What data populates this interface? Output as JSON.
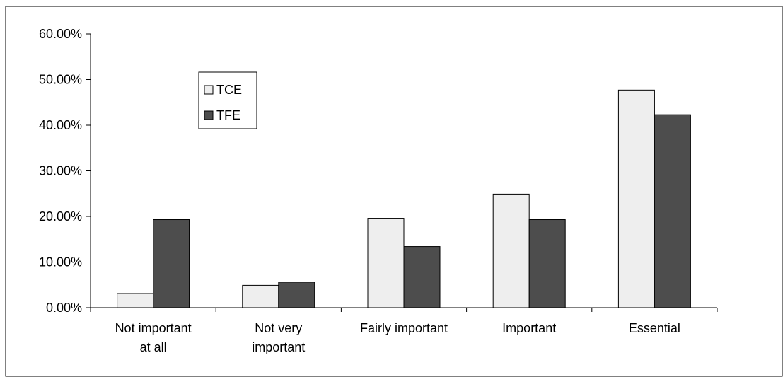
{
  "chart_data": {
    "type": "bar",
    "title": "",
    "xlabel": "",
    "ylabel": "",
    "ylim": [
      0,
      0.6
    ],
    "y_ticks": [
      {
        "value": 0.0,
        "label": "0.00%"
      },
      {
        "value": 0.1,
        "label": "10.00%"
      },
      {
        "value": 0.2,
        "label": "20.00%"
      },
      {
        "value": 0.3,
        "label": "30.00%"
      },
      {
        "value": 0.4,
        "label": "40.00%"
      },
      {
        "value": 0.5,
        "label": "50.00%"
      },
      {
        "value": 0.6,
        "label": "60.00%"
      }
    ],
    "categories": [
      [
        "Not important",
        "at all"
      ],
      [
        "Not very",
        "important"
      ],
      [
        "Fairly important"
      ],
      [
        "Important"
      ],
      [
        "Essential"
      ]
    ],
    "series": [
      {
        "name": "TCE",
        "color": "#eeeeee",
        "values": [
          0.031,
          0.049,
          0.196,
          0.249,
          0.477
        ]
      },
      {
        "name": "TFE",
        "color": "#4d4d4d",
        "values": [
          0.193,
          0.056,
          0.134,
          0.193,
          0.423
        ]
      }
    ],
    "legend": {
      "position": "top-left",
      "items": [
        "TCE",
        "TFE"
      ]
    },
    "grid": false
  }
}
